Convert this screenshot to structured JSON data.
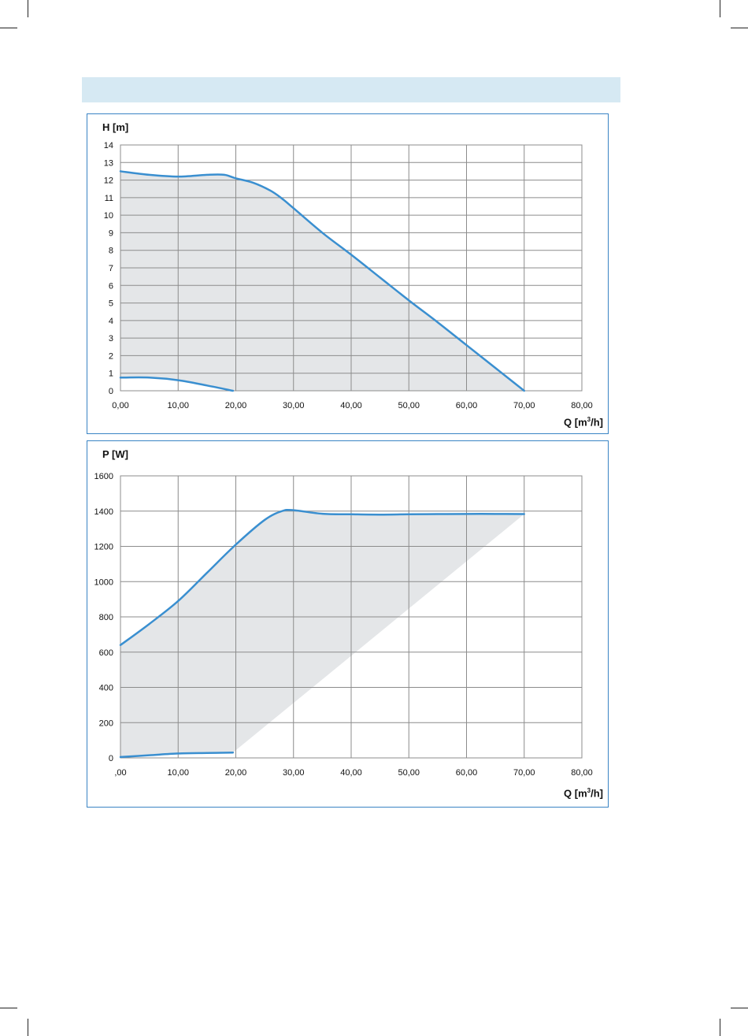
{
  "page": {
    "header_band_color": "#d6e9f3",
    "panel_border_color": "#3a84c4"
  },
  "chart_data": [
    {
      "type": "area",
      "ylabel": "H [m]",
      "xlabel": "Q [m³/h]",
      "xlim": [
        0,
        80
      ],
      "ylim": [
        0,
        14
      ],
      "x_ticks": [
        0,
        10,
        20,
        30,
        40,
        50,
        60,
        70,
        80
      ],
      "x_tick_labels": [
        "0,00",
        "10,00",
        "20,00",
        "30,00",
        "40,00",
        "50,00",
        "60,00",
        "70,00",
        "80,00"
      ],
      "y_ticks": [
        0,
        1,
        2,
        3,
        4,
        5,
        6,
        7,
        8,
        9,
        10,
        11,
        12,
        13,
        14
      ],
      "y_tick_labels": [
        "0",
        "1",
        "2",
        "3",
        "4",
        "5",
        "6",
        "7",
        "8",
        "9",
        "10",
        "11",
        "12",
        "13",
        "14"
      ],
      "grid": true,
      "line_color": "#3a8fd0",
      "fill_color": "#e4e6e8",
      "series": [
        {
          "x": [
            0,
            5,
            10,
            15,
            18,
            20,
            23,
            26,
            28,
            30,
            35,
            40,
            45,
            50,
            55,
            60,
            65,
            70
          ],
          "y": [
            12.5,
            12.3,
            12.2,
            12.3,
            12.3,
            12.1,
            11.85,
            11.4,
            10.95,
            10.4,
            9.0,
            7.75,
            6.45,
            5.15,
            3.9,
            2.6,
            1.3,
            0
          ]
        },
        {
          "x": [
            0,
            5,
            10,
            15,
            19.5
          ],
          "y": [
            0.75,
            0.75,
            0.6,
            0.3,
            0
          ]
        }
      ]
    },
    {
      "type": "area",
      "ylabel": "P [W]",
      "xlabel": "Q [m³/h]",
      "xlim": [
        0,
        80
      ],
      "ylim": [
        0,
        1600
      ],
      "x_ticks": [
        0,
        10,
        20,
        30,
        40,
        50,
        60,
        70,
        80
      ],
      "x_tick_labels": [
        ",00",
        "10,00",
        "20,00",
        "30,00",
        "40,00",
        "50,00",
        "60,00",
        "70,00",
        "80,00"
      ],
      "y_ticks": [
        0,
        200,
        400,
        600,
        800,
        1000,
        1200,
        1400,
        1600
      ],
      "y_tick_labels": [
        "0",
        "200",
        "400",
        "600",
        "800",
        "1000",
        "1200",
        "1400",
        "1600"
      ],
      "grid": true,
      "line_color": "#3a8fd0",
      "fill_color": "#e4e6e8",
      "series": [
        {
          "x": [
            0,
            5,
            10,
            15,
            20,
            25,
            28,
            30,
            35,
            40,
            45,
            50,
            55,
            60,
            65,
            70
          ],
          "y": [
            640,
            760,
            890,
            1050,
            1210,
            1350,
            1400,
            1405,
            1385,
            1382,
            1380,
            1382,
            1383,
            1384,
            1384,
            1383
          ]
        },
        {
          "x": [
            0,
            5,
            10,
            15,
            19.5
          ],
          "y": [
            5,
            15,
            25,
            28,
            30
          ]
        }
      ]
    }
  ]
}
